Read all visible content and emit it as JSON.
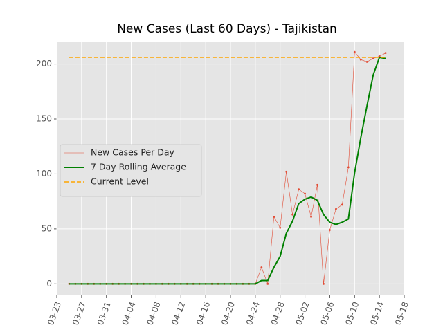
{
  "chart_data": {
    "type": "line",
    "title": "New Cases (Last 60 Days) - Tajikistan",
    "x": [
      "03-25",
      "03-26",
      "03-27",
      "03-28",
      "03-29",
      "03-30",
      "03-31",
      "04-01",
      "04-02",
      "04-03",
      "04-04",
      "04-05",
      "04-06",
      "04-07",
      "04-08",
      "04-09",
      "04-10",
      "04-11",
      "04-12",
      "04-13",
      "04-14",
      "04-15",
      "04-16",
      "04-17",
      "04-18",
      "04-19",
      "04-20",
      "04-21",
      "04-22",
      "04-23",
      "04-24",
      "04-25",
      "04-26",
      "04-27",
      "04-28",
      "04-29",
      "04-30",
      "05-01",
      "05-02",
      "05-03",
      "05-04",
      "05-05",
      "05-06",
      "05-07",
      "05-08",
      "05-09",
      "05-10",
      "05-11",
      "05-12",
      "05-13",
      "05-14",
      "05-15"
    ],
    "series": [
      {
        "name": "New Cases Per Day",
        "color": "#e24a33",
        "width": 0.6,
        "markers": true,
        "values": [
          0,
          0,
          0,
          0,
          0,
          0,
          0,
          0,
          0,
          0,
          0,
          0,
          0,
          0,
          0,
          0,
          0,
          0,
          0,
          0,
          0,
          0,
          0,
          0,
          0,
          0,
          0,
          0,
          0,
          0,
          0,
          15,
          0,
          61,
          51,
          102,
          63,
          86,
          82,
          61,
          90,
          0,
          49,
          68,
          72,
          106,
          211,
          204,
          202,
          205,
          207,
          210
        ]
      },
      {
        "name": "7 Day Rolling Average",
        "color": "#008000",
        "width": 2,
        "values": [
          0,
          0,
          0,
          0,
          0,
          0,
          0,
          0,
          0,
          0,
          0,
          0,
          0,
          0,
          0,
          0,
          0,
          0,
          0,
          0,
          0,
          0,
          0,
          0,
          0,
          0,
          0,
          0,
          0,
          0,
          0,
          3,
          3,
          15,
          25,
          46,
          57,
          73,
          77,
          79,
          76,
          63,
          56,
          54,
          56,
          59,
          101,
          133,
          162,
          190,
          206,
          205
        ]
      },
      {
        "name": "Current Level",
        "color": "#ffa500",
        "width": 1.5,
        "dashed": true,
        "values": [
          206,
          206,
          206,
          206,
          206,
          206,
          206,
          206,
          206,
          206,
          206,
          206,
          206,
          206,
          206,
          206,
          206,
          206,
          206,
          206,
          206,
          206,
          206,
          206,
          206,
          206,
          206,
          206,
          206,
          206,
          206,
          206,
          206,
          206,
          206,
          206,
          206,
          206,
          206,
          206,
          206,
          206,
          206,
          206,
          206,
          206,
          206,
          206,
          206,
          206,
          206,
          206
        ]
      }
    ],
    "xlim": [
      "03-23",
      "05-18"
    ],
    "xticks": [
      "03-23",
      "03-27",
      "03-31",
      "04-04",
      "04-08",
      "04-12",
      "04-16",
      "04-20",
      "04-24",
      "04-28",
      "05-02",
      "05-06",
      "05-10",
      "05-14",
      "05-18"
    ],
    "ylim": [
      -10.5,
      220.5
    ],
    "yticks": [
      0,
      50,
      100,
      150,
      200
    ],
    "grid": true,
    "legend": "center left"
  }
}
